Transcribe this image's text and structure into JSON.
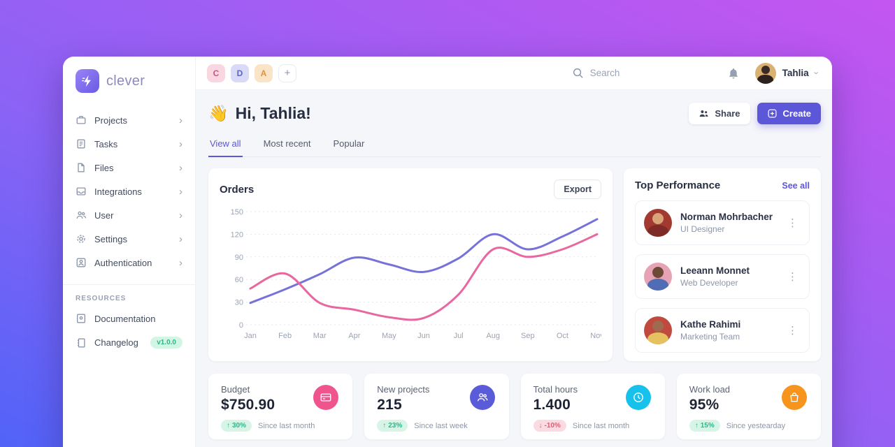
{
  "brand": {
    "name": "clever"
  },
  "sidebar": {
    "nav": [
      {
        "icon": "briefcase-icon",
        "label": "Projects"
      },
      {
        "icon": "tasks-icon",
        "label": "Tasks"
      },
      {
        "icon": "file-icon",
        "label": "Files"
      },
      {
        "icon": "inbox-icon",
        "label": "Integrations"
      },
      {
        "icon": "users-icon",
        "label": "User"
      },
      {
        "icon": "gear-icon",
        "label": "Settings"
      },
      {
        "icon": "user-frame-icon",
        "label": "Authentication"
      }
    ],
    "resources_heading": "RESOURCES",
    "resources": [
      {
        "icon": "book-icon",
        "label": "Documentation"
      },
      {
        "icon": "changelog-icon",
        "label": "Changelog",
        "badge": "v1.0.0"
      }
    ]
  },
  "header": {
    "chips": [
      {
        "letter": "C",
        "bg": "#f9d7e0",
        "fg": "#c9548c"
      },
      {
        "letter": "D",
        "bg": "#d8daf6",
        "fg": "#5d64c8"
      },
      {
        "letter": "A",
        "bg": "#f9e4c8",
        "fg": "#dd9440"
      }
    ],
    "add_chip_label": "+",
    "search_placeholder": "Search",
    "user_name": "Tahlia"
  },
  "main": {
    "wave_emoji": "👋",
    "greeting": "Hi, Tahlia!",
    "tabs": [
      {
        "label": "View all",
        "active": true
      },
      {
        "label": "Most recent",
        "active": false
      },
      {
        "label": "Popular",
        "active": false
      }
    ],
    "share_label": "Share",
    "create_label": "Create"
  },
  "orders": {
    "title": "Orders",
    "export_label": "Export"
  },
  "chart_data": {
    "type": "line",
    "title": "Orders",
    "x_labels": [
      "Jan",
      "Feb",
      "Mar",
      "Apr",
      "May",
      "Jun",
      "Jul",
      "Aug",
      "Sep",
      "Oct",
      "Nov"
    ],
    "y_ticks": [
      0,
      30,
      60,
      90,
      120,
      150
    ],
    "ylim": [
      0,
      150
    ],
    "grid": "dotted-horizontal",
    "legend_position": "none",
    "series": [
      {
        "name": "purple-series",
        "color": "#7672d9",
        "values": [
          29,
          47,
          67,
          89,
          80,
          70,
          88,
          120,
          100,
          117,
          140
        ]
      },
      {
        "name": "pink-series",
        "color": "#e8679e",
        "values": [
          48,
          68,
          29,
          20,
          10,
          9,
          40,
          100,
          90,
          100,
          120
        ]
      }
    ]
  },
  "performance": {
    "title": "Top Performance",
    "see_all_label": "See all",
    "people": [
      {
        "name": "Norman Mohrbacher",
        "role": "UI Designer"
      },
      {
        "name": "Leeann Monnet",
        "role": "Web Developer"
      },
      {
        "name": "Kathe Rahimi",
        "role": "Marketing Team"
      }
    ]
  },
  "stats": [
    {
      "label": "Budget",
      "value": "$750.90",
      "arrow": "↑",
      "change": "30%",
      "direction": "up",
      "period": "Since last month",
      "icon": "credit-card-icon",
      "icon_bg": "#f0548d"
    },
    {
      "label": "New projects",
      "value": "215",
      "arrow": "↑",
      "change": "23%",
      "direction": "up",
      "period": "Since last week",
      "icon": "users-icon",
      "icon_bg": "#5a5bd8"
    },
    {
      "label": "Total hours",
      "value": "1.400",
      "arrow": "↓",
      "change": "-10%",
      "direction": "down",
      "period": "Since last month",
      "icon": "clock-icon",
      "icon_bg": "#16c1ec"
    },
    {
      "label": "Work load",
      "value": "95%",
      "arrow": "↑",
      "change": "15%",
      "direction": "up",
      "period": "Since yestearday",
      "icon": "bag-icon",
      "icon_bg": "#f7941e"
    }
  ],
  "colors": {
    "accent": "#5b57d8",
    "badge_up_bg": "#d7f5e7",
    "badge_up_fg": "#2bb78a",
    "badge_down_bg": "#fbdae1",
    "badge_down_fg": "#e25c75",
    "background_gradient": [
      "#5163f8",
      "#c455f0"
    ]
  }
}
